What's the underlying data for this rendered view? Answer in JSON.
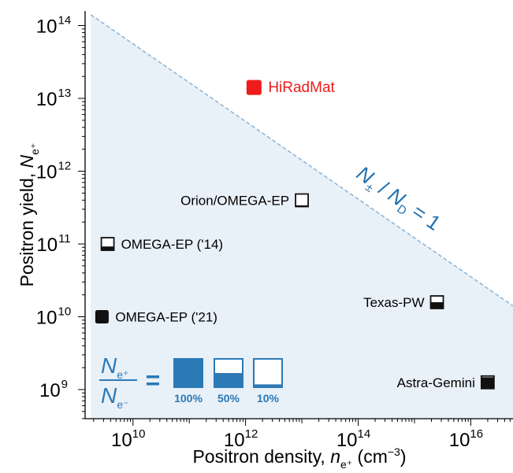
{
  "chart_data": {
    "type": "scatter",
    "x_scale": "log",
    "y_scale": "log",
    "xlabel": {
      "main": "Positron density, ",
      "var": "n",
      "sub": "e⁺",
      "unit": " (cm",
      "exp": "−3",
      "close": ")"
    },
    "ylabel": {
      "main": "Positron yield, ",
      "var": "N",
      "sub": "e⁺"
    },
    "xlim_exp": [
      9.15,
      16.75
    ],
    "ylim_exp": [
      8.6,
      14.2
    ],
    "x_ticks": [
      {
        "base": "10",
        "exp": "10",
        "e": 10
      },
      {
        "base": "10",
        "exp": "12",
        "e": 12
      },
      {
        "base": "10",
        "exp": "14",
        "e": 14
      },
      {
        "base": "10",
        "exp": "16",
        "e": 16
      }
    ],
    "y_ticks": [
      {
        "base": "10",
        "exp": "9",
        "e": 9
      },
      {
        "base": "10",
        "exp": "10",
        "e": 10
      },
      {
        "base": "10",
        "exp": "11",
        "e": 11
      },
      {
        "base": "10",
        "exp": "12",
        "e": 12
      },
      {
        "base": "10",
        "exp": "13",
        "e": 13
      },
      {
        "base": "10",
        "exp": "14",
        "e": 14
      }
    ],
    "points": [
      {
        "label": "HiRadMat",
        "x_exp": 12.15,
        "y_exp": 13.15,
        "fill_fraction": 1.0,
        "color": "#ee1c1c",
        "label_side": "right"
      },
      {
        "label": "Orion/OMEGA-EP",
        "x_exp": 13.0,
        "y_exp": 11.6,
        "fill_fraction": 0.1,
        "color": "#111111",
        "label_side": "left"
      },
      {
        "label": "OMEGA-EP ('14)",
        "x_exp": 9.55,
        "y_exp": 11.0,
        "fill_fraction": 0.3,
        "color": "#111111",
        "label_side": "right"
      },
      {
        "label": "OMEGA-EP ('21)",
        "x_exp": 9.45,
        "y_exp": 10.0,
        "fill_fraction": 1.0,
        "color": "#111111",
        "label_side": "right"
      },
      {
        "label": "Texas-PW",
        "x_exp": 15.4,
        "y_exp": 10.2,
        "fill_fraction": 0.5,
        "color": "#111111",
        "label_side": "left"
      },
      {
        "label": "Astra-Gemini",
        "x_exp": 16.3,
        "y_exp": 9.1,
        "fill_fraction": 0.9,
        "color": "#111111",
        "label_side": "left"
      }
    ],
    "boundary_line": {
      "from": [
        9.25,
        14.15
      ],
      "to": [
        16.75,
        10.15
      ],
      "color": "#8ab4d6",
      "region_fill": "#e8f0f8"
    },
    "boundary_label": {
      "N": "N",
      "pm": "±",
      "slash": " / ",
      "N2": "N",
      "D": "D",
      "eq": " = 1"
    },
    "ratio_legend": {
      "num": "N",
      "num_sub": "e⁺",
      "den": "N",
      "den_sub": "e⁻",
      "eq": "=",
      "color": "#2b79b5",
      "items": [
        {
          "label": "100%",
          "fraction": 1.0
        },
        {
          "label": "50%",
          "fraction": 0.5
        },
        {
          "label": "10%",
          "fraction": 0.1
        }
      ]
    }
  }
}
